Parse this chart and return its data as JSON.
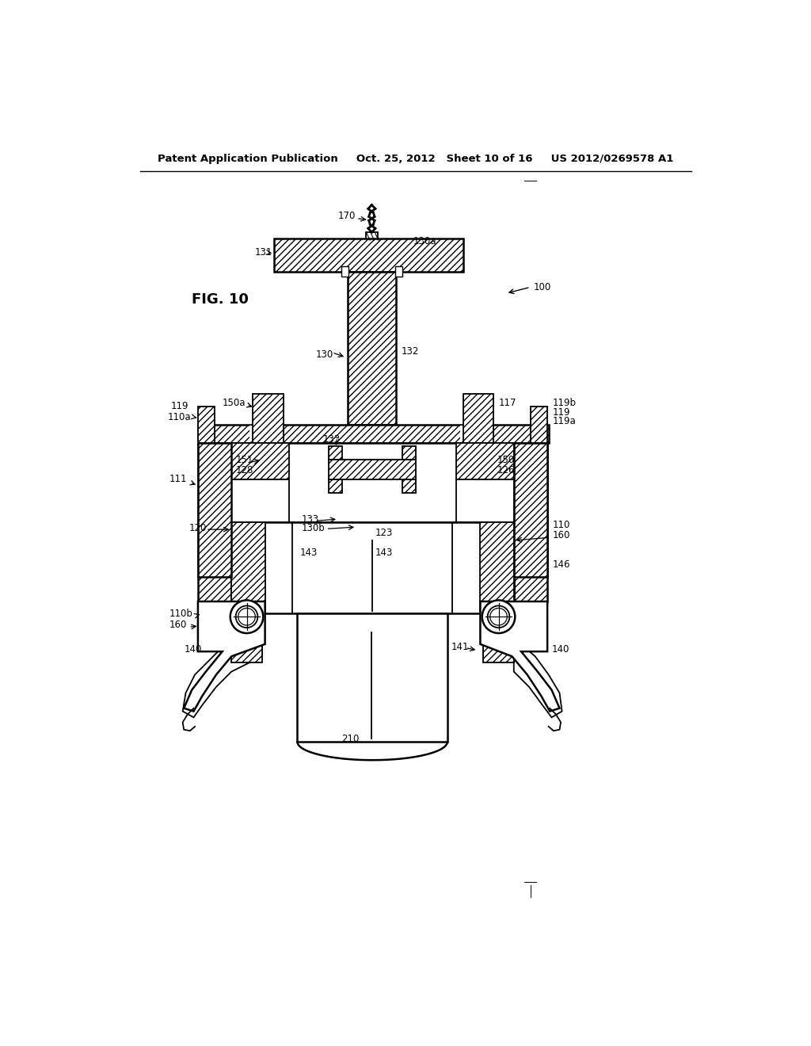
{
  "background_color": "#ffffff",
  "header_text": "Patent Application Publication",
  "header_date": "Oct. 25, 2012",
  "header_sheet": "Sheet 10 of 16",
  "header_patent": "US 2012/0269578 A1",
  "fig_label": "FIG. 10",
  "page_width": 1.0,
  "page_height": 1.0
}
